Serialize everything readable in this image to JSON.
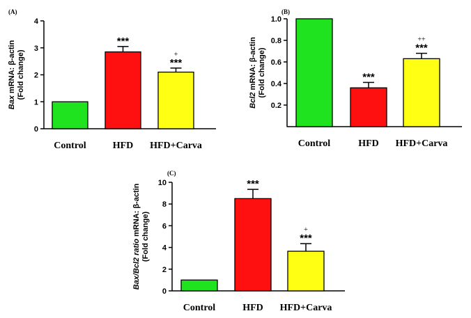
{
  "colors": {
    "green": "#1ee31e",
    "red": "#ff1010",
    "yellow": "#ffff14"
  },
  "chart_data": [
    {
      "type": "bar",
      "panel": "(A)",
      "categories": [
        "Control",
        "HFD",
        "HFD+Carva"
      ],
      "values": [
        1.0,
        2.85,
        2.1
      ],
      "errors": [
        0,
        0.2,
        0.15
      ],
      "colors": [
        "#1ee31e",
        "#ff1010",
        "#ffff14"
      ],
      "annotations": [
        {
          "stars": "",
          "plus": ""
        },
        {
          "stars": "***",
          "plus": ""
        },
        {
          "stars": "***",
          "plus": "+"
        }
      ],
      "ylabel_gene": "Bax",
      "ylabel_rest": " mRNA: β-actin",
      "ylabel_line2": "(Fold change)",
      "ylim": [
        0,
        4
      ],
      "yticks": [
        "0",
        "1",
        "2",
        "3",
        "4"
      ]
    },
    {
      "type": "bar",
      "panel": "(B)",
      "categories": [
        "Control",
        "HFD",
        "HFD+Carva"
      ],
      "values": [
        1.0,
        0.36,
        0.63
      ],
      "errors": [
        0,
        0.05,
        0.05
      ],
      "colors": [
        "#1ee31e",
        "#ff1010",
        "#ffff14"
      ],
      "annotations": [
        {
          "stars": "",
          "plus": ""
        },
        {
          "stars": "***",
          "plus": ""
        },
        {
          "stars": "***",
          "plus": "++"
        }
      ],
      "ylabel_gene": "Bcl2",
      "ylabel_rest": " mRNA: β-actin",
      "ylabel_line2": "(Fold change)",
      "ylim": [
        0,
        1.0
      ],
      "yticks": [
        "0.2",
        "0.4",
        "0.6",
        "0.8",
        "1.0"
      ]
    },
    {
      "type": "bar",
      "panel": "(C)",
      "categories": [
        "Control",
        "HFD",
        "HFD+Carva"
      ],
      "values": [
        1.0,
        8.5,
        3.65
      ],
      "errors": [
        0,
        0.85,
        0.7
      ],
      "colors": [
        "#1ee31e",
        "#ff1010",
        "#ffff14"
      ],
      "annotations": [
        {
          "stars": "",
          "plus": ""
        },
        {
          "stars": "***",
          "plus": ""
        },
        {
          "stars": "***",
          "plus": "+"
        }
      ],
      "ylabel_gene": "Bax/Bcl2 ratio",
      "ylabel_rest": " mRNA: β-actin",
      "ylabel_line2": "(Fold change)",
      "ylim": [
        0,
        10
      ],
      "yticks": [
        "0",
        "2",
        "4",
        "6",
        "8",
        "10"
      ]
    }
  ]
}
